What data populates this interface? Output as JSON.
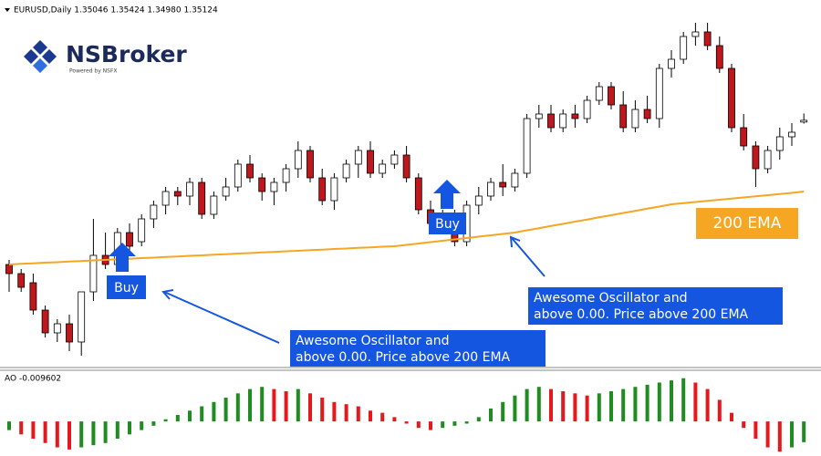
{
  "header": "EURUSD,Daily  1.35046 1.35424 1.34980 1.35124",
  "logo": {
    "name": "NSBroker",
    "tagline": "Powered by NSFX"
  },
  "chart_data": [
    {
      "type": "candlestick",
      "ohlc": [
        [
          1.288,
          1.29,
          1.276,
          1.284
        ],
        [
          1.284,
          1.286,
          1.276,
          1.278
        ],
        [
          1.28,
          1.284,
          1.266,
          1.268
        ],
        [
          1.268,
          1.27,
          1.256,
          1.258
        ],
        [
          1.258,
          1.264,
          1.254,
          1.262
        ],
        [
          1.262,
          1.266,
          1.25,
          1.254
        ],
        [
          1.254,
          1.276,
          1.248,
          1.276
        ],
        [
          1.276,
          1.308,
          1.272,
          1.292
        ],
        [
          1.292,
          1.302,
          1.286,
          1.288
        ],
        [
          1.288,
          1.304,
          1.286,
          1.302
        ],
        [
          1.302,
          1.306,
          1.294,
          1.296
        ],
        [
          1.298,
          1.31,
          1.296,
          1.308
        ],
        [
          1.308,
          1.316,
          1.304,
          1.314
        ],
        [
          1.314,
          1.322,
          1.31,
          1.32
        ],
        [
          1.32,
          1.322,
          1.314,
          1.318
        ],
        [
          1.318,
          1.326,
          1.314,
          1.324
        ],
        [
          1.324,
          1.326,
          1.308,
          1.31
        ],
        [
          1.31,
          1.32,
          1.308,
          1.318
        ],
        [
          1.318,
          1.326,
          1.316,
          1.322
        ],
        [
          1.322,
          1.334,
          1.32,
          1.332
        ],
        [
          1.332,
          1.336,
          1.324,
          1.326
        ],
        [
          1.326,
          1.328,
          1.316,
          1.32
        ],
        [
          1.32,
          1.326,
          1.314,
          1.324
        ],
        [
          1.324,
          1.332,
          1.32,
          1.33
        ],
        [
          1.33,
          1.342,
          1.326,
          1.338
        ],
        [
          1.338,
          1.34,
          1.324,
          1.326
        ],
        [
          1.326,
          1.33,
          1.314,
          1.316
        ],
        [
          1.316,
          1.328,
          1.312,
          1.326
        ],
        [
          1.326,
          1.334,
          1.324,
          1.332
        ],
        [
          1.332,
          1.34,
          1.326,
          1.338
        ],
        [
          1.338,
          1.342,
          1.326,
          1.328
        ],
        [
          1.328,
          1.334,
          1.326,
          1.332
        ],
        [
          1.332,
          1.338,
          1.33,
          1.336
        ],
        [
          1.336,
          1.34,
          1.324,
          1.326
        ],
        [
          1.326,
          1.328,
          1.31,
          1.312
        ],
        [
          1.312,
          1.316,
          1.304,
          1.306
        ],
        [
          1.306,
          1.312,
          1.304,
          1.308
        ],
        [
          1.308,
          1.312,
          1.296,
          1.298
        ],
        [
          1.298,
          1.316,
          1.296,
          1.314
        ],
        [
          1.314,
          1.322,
          1.31,
          1.318
        ],
        [
          1.318,
          1.326,
          1.316,
          1.324
        ],
        [
          1.324,
          1.332,
          1.318,
          1.322
        ],
        [
          1.322,
          1.33,
          1.32,
          1.328
        ],
        [
          1.328,
          1.354,
          1.326,
          1.352
        ],
        [
          1.352,
          1.358,
          1.348,
          1.354
        ],
        [
          1.354,
          1.358,
          1.346,
          1.348
        ],
        [
          1.348,
          1.356,
          1.346,
          1.354
        ],
        [
          1.354,
          1.358,
          1.348,
          1.352
        ],
        [
          1.352,
          1.362,
          1.35,
          1.36
        ],
        [
          1.36,
          1.368,
          1.358,
          1.366
        ],
        [
          1.366,
          1.368,
          1.356,
          1.358
        ],
        [
          1.358,
          1.364,
          1.346,
          1.348
        ],
        [
          1.348,
          1.36,
          1.346,
          1.356
        ],
        [
          1.356,
          1.362,
          1.35,
          1.352
        ],
        [
          1.352,
          1.376,
          1.348,
          1.374
        ],
        [
          1.374,
          1.382,
          1.37,
          1.378
        ],
        [
          1.378,
          1.39,
          1.376,
          1.388
        ],
        [
          1.388,
          1.394,
          1.384,
          1.39
        ],
        [
          1.39,
          1.394,
          1.382,
          1.384
        ],
        [
          1.384,
          1.388,
          1.372,
          1.374
        ],
        [
          1.374,
          1.376,
          1.346,
          1.348
        ],
        [
          1.348,
          1.354,
          1.338,
          1.34
        ],
        [
          1.34,
          1.342,
          1.322,
          1.33
        ],
        [
          1.33,
          1.34,
          1.328,
          1.338
        ],
        [
          1.338,
          1.348,
          1.334,
          1.344
        ],
        [
          1.344,
          1.35,
          1.34,
          1.346
        ],
        [
          1.35046,
          1.35424,
          1.3498,
          1.35124
        ]
      ],
      "ema": {
        "name": "200 EMA",
        "color": "#f5a623",
        "values": [
          1.288,
          1.2883,
          1.2885,
          1.2888,
          1.289,
          1.2893,
          1.2895,
          1.2898,
          1.29,
          1.2903,
          1.2905,
          1.2908,
          1.291,
          1.2913,
          1.2915,
          1.2918,
          1.292,
          1.2923,
          1.2925,
          1.2928,
          1.293,
          1.2933,
          1.2935,
          1.2938,
          1.294,
          1.2943,
          1.2945,
          1.2948,
          1.295,
          1.2953,
          1.2955,
          1.2958,
          1.296,
          1.2966,
          1.2972,
          1.2978,
          1.2984,
          1.299,
          1.2996,
          1.3002,
          1.3008,
          1.3014,
          1.302,
          1.303,
          1.3039,
          1.3049,
          1.3058,
          1.3068,
          1.3077,
          1.3087,
          1.3096,
          1.3106,
          1.3115,
          1.3125,
          1.3134,
          1.3144,
          1.3149,
          1.3154,
          1.3159,
          1.3164,
          1.3169,
          1.3174,
          1.3179,
          1.3184,
          1.3189,
          1.3194,
          1.32
        ]
      },
      "ylim": [
        1.244,
        1.404
      ],
      "up_color": "#ffffff",
      "down_color": "#c0171c"
    },
    {
      "type": "bar",
      "title": "AO -0.009602",
      "values": [
        -0.004,
        -0.006,
        -0.008,
        -0.01,
        -0.012,
        -0.013,
        -0.012,
        -0.011,
        -0.01,
        -0.008,
        -0.006,
        -0.004,
        -0.002,
        0.001,
        0.003,
        0.005,
        0.007,
        0.009,
        0.011,
        0.013,
        0.015,
        0.016,
        0.015,
        0.014,
        0.015,
        0.013,
        0.011,
        0.009,
        0.008,
        0.007,
        0.005,
        0.004,
        0.002,
        -0.001,
        -0.003,
        -0.004,
        -0.003,
        -0.002,
        -0.001,
        0.002,
        0.006,
        0.009,
        0.012,
        0.015,
        0.016,
        0.015,
        0.014,
        0.013,
        0.012,
        0.013,
        0.014,
        0.015,
        0.016,
        0.017,
        0.018,
        0.019,
        0.02,
        0.018,
        0.015,
        0.01,
        0.004,
        -0.003,
        -0.008,
        -0.012,
        -0.014,
        -0.012,
        -0.009602
      ],
      "ylim": [
        -0.016,
        0.022
      ],
      "up_color": "#1e8c1e",
      "down_color": "#e3191c"
    }
  ],
  "annotations": {
    "buy": [
      "Buy",
      "Buy"
    ],
    "notes": [
      [
        "Awesome Oscillator and",
        "above 0.00. Price above 200 EMA"
      ],
      [
        "Awesome Oscillator and",
        "above 0.00. Price above 200 EMA"
      ]
    ]
  }
}
